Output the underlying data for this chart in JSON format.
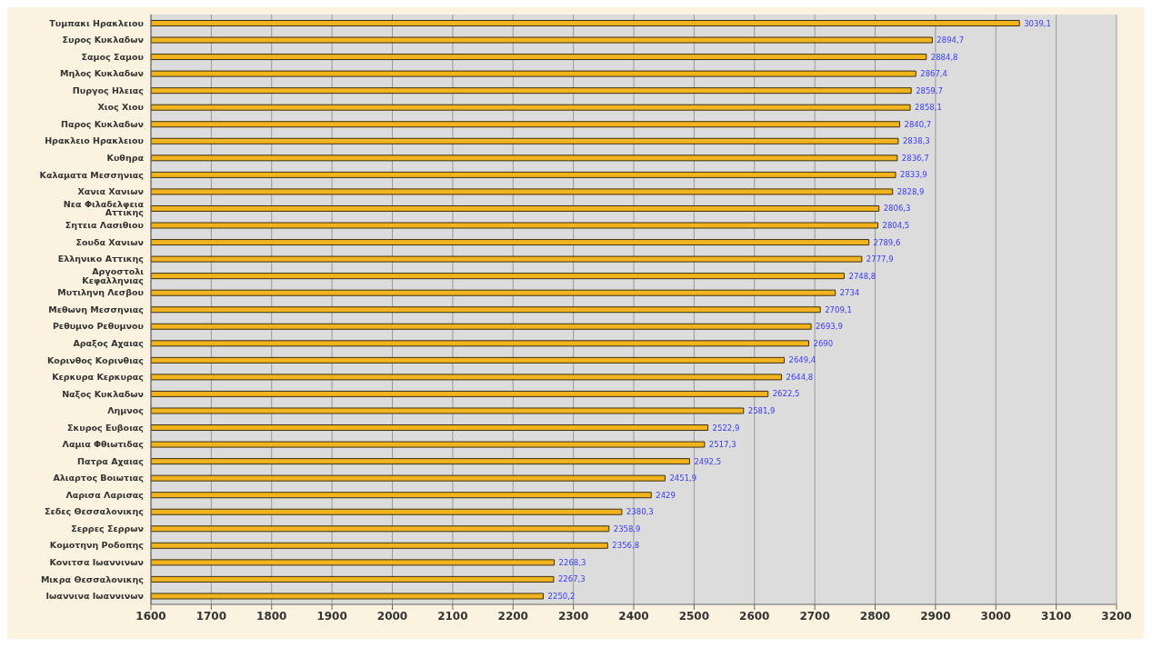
{
  "chart_data": {
    "type": "bar",
    "orientation": "horizontal",
    "categories": [
      "Τυμπακι Ηρακλειου",
      "Συρος Κυκλαδων",
      "Σαμος Σαμου",
      "Μηλος Κυκλαδων",
      "Πυργος Ηλειας",
      "Χιος Χιου",
      "Παρος Κυκλαδων",
      "Ηρακλειο Ηρακλειου",
      "Κυθηρα",
      "Καλαματα Μεσσηνιας",
      "Χανια Χανιων",
      "Νεα Φιλαδελφεια Αττικης",
      "Σητεια Λασιθιου",
      "Σουδα Χανιων",
      "Ελληνικο Αττικης",
      "Αργοστολι Κεφαλληνιας",
      "Μυτιληνη Λεσβου",
      "Μεθωνη Μεσσηνιας",
      "Ρεθυμνο Ρεθυμνου",
      "Αραξος Αχαιας",
      "Κορινθος Κορινθιας",
      "Κερκυρα Κερκυρας",
      "Ναξος Κυκλαδων",
      "Λημνος",
      "Σκυρος Ευβοιας",
      "Λαμια Φθιωτιδας",
      "Πατρα Αχαιας",
      "Αλιαρτος Βοιωτιας",
      "Λαρισα Λαρισας",
      "Σεδες Θεσσαλονικης",
      "Σερρες Σερρων",
      "Κομοτηνη Ροδοπης",
      "Κονιτσα Ιωαννινων",
      "Μικρα Θεσσαλονικης",
      "Ιωαννινα Ιωαννινων"
    ],
    "values": [
      3039.1,
      2894.7,
      2884.8,
      2867.4,
      2859.7,
      2858.1,
      2840.7,
      2838.3,
      2836.7,
      2833.9,
      2828.9,
      2806.3,
      2804.5,
      2789.6,
      2777.9,
      2748.8,
      2734,
      2709.1,
      2693.9,
      2690,
      2649.4,
      2644.8,
      2622.5,
      2581.9,
      2522.9,
      2517.3,
      2492.5,
      2451.9,
      2429,
      2380.3,
      2358.9,
      2356.8,
      2268.3,
      2267.3,
      2250.2
    ],
    "value_labels": [
      "3039,1",
      "2894,7",
      "2884,8",
      "2867,4",
      "2859,7",
      "2858,1",
      "2840,7",
      "2838,3",
      "2836,7",
      "2833,9",
      "2828,9",
      "2806,3",
      "2804,5",
      "2789,6",
      "2777,9",
      "2748,8",
      "2734",
      "2709,1",
      "2693,9",
      "2690",
      "2649,4",
      "2644,8",
      "2622,5",
      "2581,9",
      "2522,9",
      "2517,3",
      "2492,5",
      "2451,9",
      "2429",
      "2380,3",
      "2358,9",
      "2356,8",
      "2268,3",
      "2267,3",
      "2250,2"
    ],
    "color": "#f2b41e",
    "xlim": [
      1600,
      3200
    ],
    "xticks": [
      1600,
      1700,
      1800,
      1900,
      2000,
      2100,
      2200,
      2300,
      2400,
      2500,
      2600,
      2700,
      2800,
      2900,
      3000,
      3100,
      3200
    ],
    "grid": "x"
  }
}
